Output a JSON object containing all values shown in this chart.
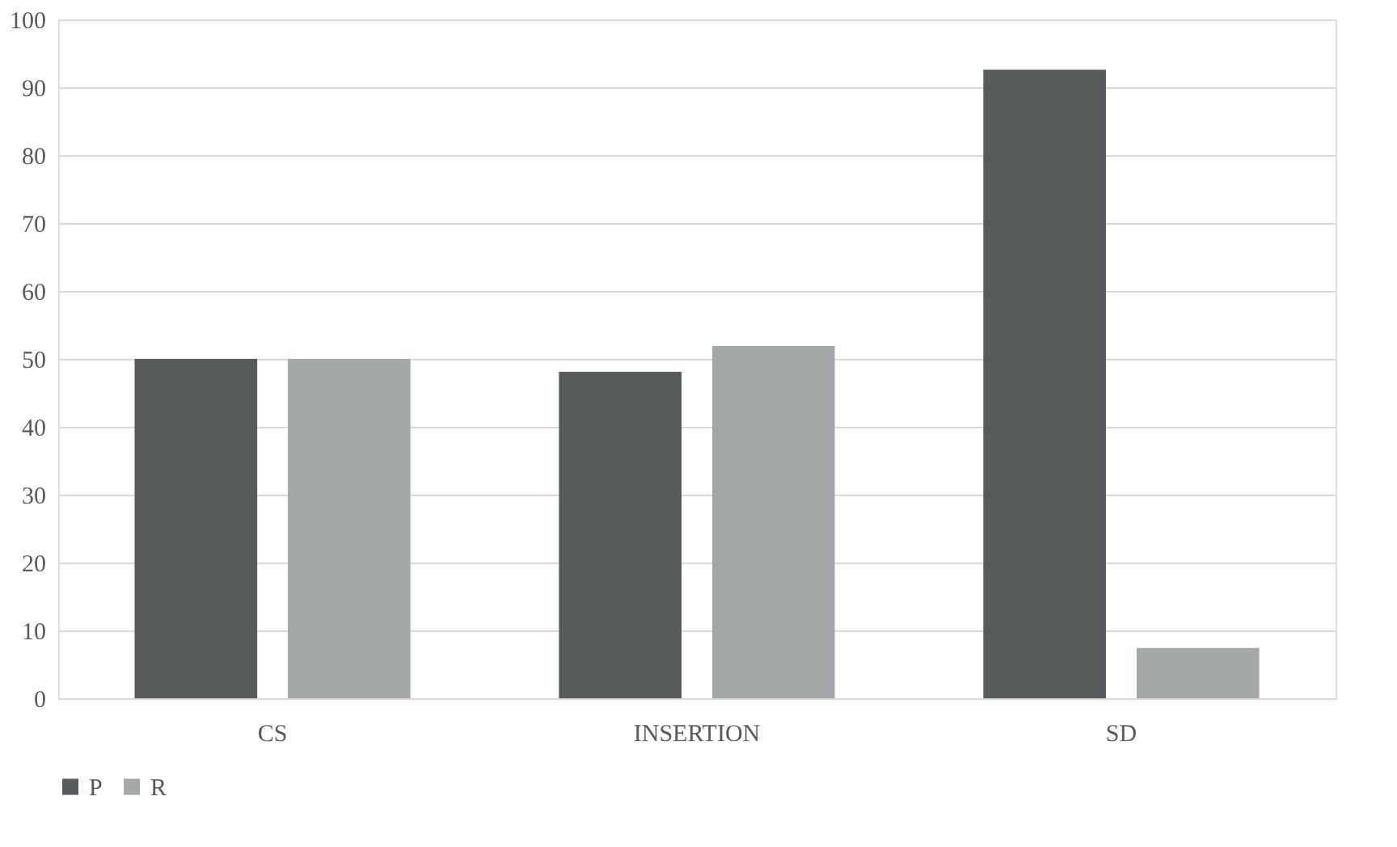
{
  "chart_data": {
    "type": "bar",
    "categories": [
      "CS",
      "INSERTION",
      "SD"
    ],
    "series": [
      {
        "name": "P",
        "color": "#575b5b",
        "values": [
          50,
          48.1,
          92.6
        ]
      },
      {
        "name": "R",
        "color": "#a5a8a8",
        "values": [
          50,
          51.9,
          7.4
        ]
      }
    ],
    "ylim": [
      0,
      100
    ],
    "yticks": [
      0,
      10,
      20,
      30,
      40,
      50,
      60,
      70,
      80,
      90,
      100
    ],
    "grid": "y",
    "legend": "bottom"
  }
}
